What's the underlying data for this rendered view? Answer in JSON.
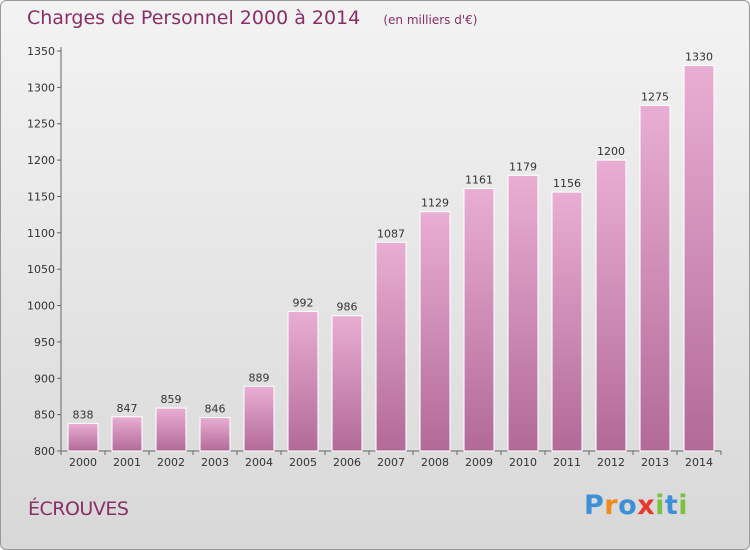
{
  "chart_data": {
    "type": "bar",
    "title": "Charges de Personnel 2000 à 2014",
    "subtitle": "(en milliers d'€)",
    "categories": [
      "2000",
      "2001",
      "2002",
      "2003",
      "2004",
      "2005",
      "2006",
      "2007",
      "2008",
      "2009",
      "2010",
      "2011",
      "2012",
      "2013",
      "2014"
    ],
    "values": [
      838,
      847,
      859,
      846,
      889,
      992,
      986,
      1087,
      1129,
      1161,
      1179,
      1156,
      1200,
      1275,
      1330
    ],
    "ylim": [
      800,
      1350
    ],
    "yticks": [
      800,
      850,
      900,
      950,
      1000,
      1050,
      1100,
      1150,
      1200,
      1250,
      1300,
      1350
    ],
    "xlabel": "",
    "ylabel": "",
    "grid": false,
    "legend": "none"
  },
  "commune": "ÉCROUVES",
  "logo": {
    "letters": [
      "P",
      "r",
      "o",
      "x",
      "i",
      "t",
      "i"
    ],
    "colors": [
      "#3d8fd6",
      "#f08a1c",
      "#3d8fd6",
      "#e8382e",
      "#7cc242",
      "#3d8fd6",
      "#7cc242"
    ]
  },
  "colors": {
    "bar_top": "#e9aed3",
    "bar_bottom": "#b26a98",
    "text_accent": "#8a2e67"
  }
}
